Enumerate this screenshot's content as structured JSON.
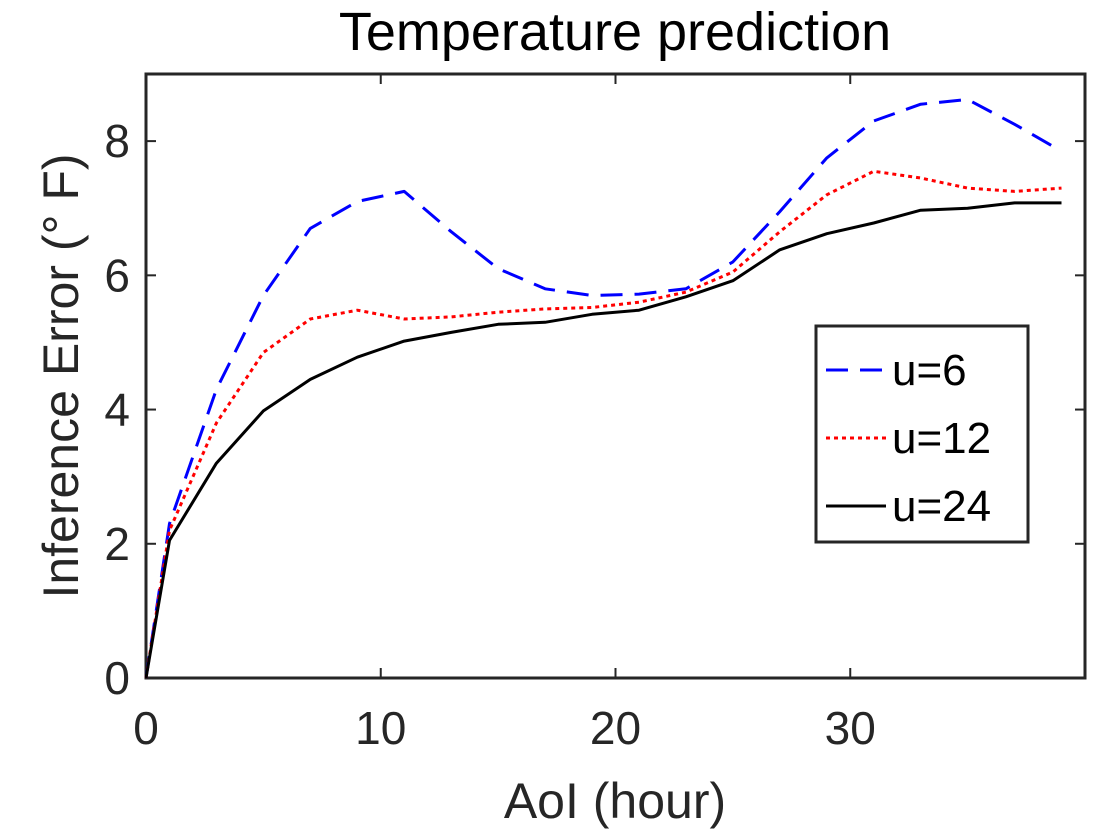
{
  "chart_data": {
    "type": "line",
    "title": "Temperature prediction",
    "xlabel": "AoI (hour)",
    "ylabel": "Inference Error (° F)",
    "xlim": [
      0,
      40
    ],
    "ylim": [
      0,
      9
    ],
    "xticks": [
      0,
      10,
      20,
      30
    ],
    "yticks": [
      0,
      2,
      4,
      6,
      8
    ],
    "grid": false,
    "legend_position": "right",
    "series": [
      {
        "name": "u=6",
        "color": "#0000ff",
        "style": "dashed",
        "x": [
          0,
          1,
          3,
          5,
          7,
          9,
          11,
          13,
          15,
          17,
          19,
          21,
          23,
          25,
          27,
          29,
          31,
          33,
          35,
          37,
          39
        ],
        "y": [
          0,
          2.3,
          4.3,
          5.7,
          6.7,
          7.1,
          7.25,
          6.65,
          6.1,
          5.8,
          5.7,
          5.72,
          5.8,
          6.2,
          6.95,
          7.75,
          8.3,
          8.55,
          8.62,
          8.25,
          7.85
        ]
      },
      {
        "name": "u=12",
        "color": "#ff0000",
        "style": "dotted",
        "x": [
          0,
          1,
          3,
          5,
          7,
          9,
          11,
          13,
          15,
          17,
          19,
          21,
          23,
          25,
          27,
          29,
          31,
          33,
          35,
          37,
          39
        ],
        "y": [
          0,
          2.2,
          3.8,
          4.85,
          5.35,
          5.48,
          5.35,
          5.38,
          5.45,
          5.5,
          5.52,
          5.6,
          5.75,
          6.05,
          6.65,
          7.2,
          7.55,
          7.45,
          7.3,
          7.25,
          7.3
        ]
      },
      {
        "name": "u=24",
        "color": "#000000",
        "style": "solid",
        "x": [
          0,
          1,
          3,
          5,
          7,
          9,
          11,
          13,
          15,
          17,
          19,
          21,
          23,
          25,
          27,
          29,
          31,
          33,
          35,
          37,
          39
        ],
        "y": [
          0,
          2.05,
          3.2,
          3.98,
          4.45,
          4.78,
          5.02,
          5.15,
          5.27,
          5.3,
          5.42,
          5.48,
          5.68,
          5.92,
          6.38,
          6.62,
          6.78,
          6.97,
          7.0,
          7.08,
          7.08
        ]
      }
    ]
  }
}
